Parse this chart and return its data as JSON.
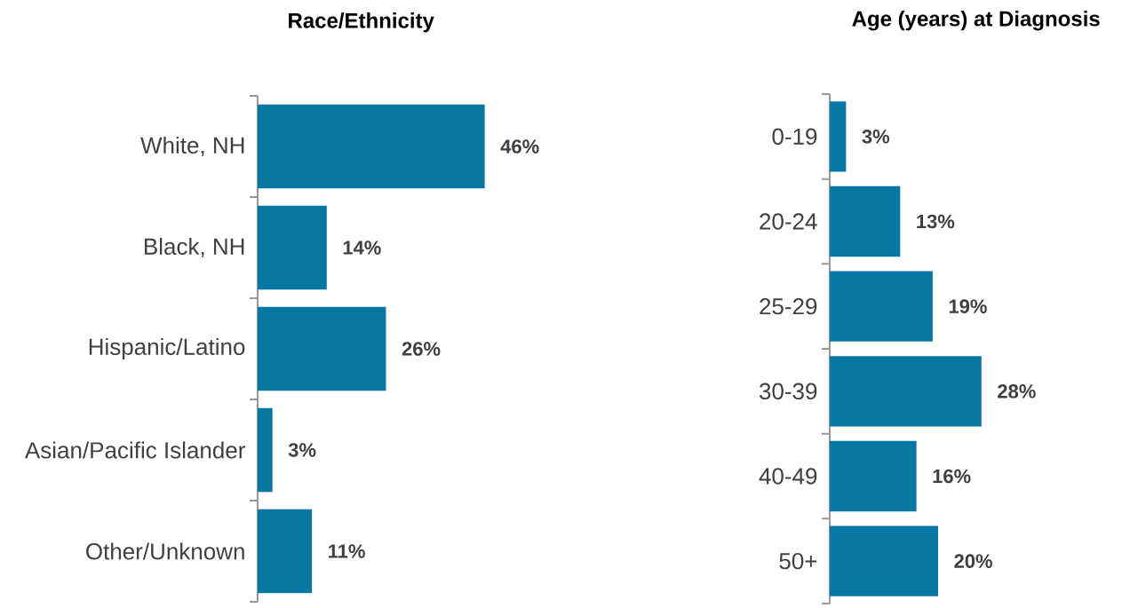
{
  "chart_data": [
    {
      "type": "bar",
      "orientation": "horizontal",
      "title": "Race/Ethnicity",
      "categories": [
        "White, NH",
        "Black, NH",
        "Hispanic/Latino",
        "Asian/Pacific Islander",
        "Other/Unknown"
      ],
      "values": [
        46,
        14,
        26,
        3,
        11
      ],
      "value_labels": [
        "46%",
        "14%",
        "26%",
        "3%",
        "11%"
      ],
      "color": "#0777a3",
      "tick_labels": "y"
    },
    {
      "type": "bar",
      "orientation": "horizontal",
      "title": "Age (years) at Diagnosis",
      "categories": [
        "0-19",
        "20-24",
        "25-29",
        "30-39",
        "40-49",
        "50+"
      ],
      "values": [
        3,
        13,
        19,
        28,
        16,
        20
      ],
      "value_labels": [
        "3%",
        "13%",
        "19%",
        "28%",
        "16%",
        "20%"
      ],
      "color": "#0777a3",
      "tick_labels": "y"
    }
  ]
}
